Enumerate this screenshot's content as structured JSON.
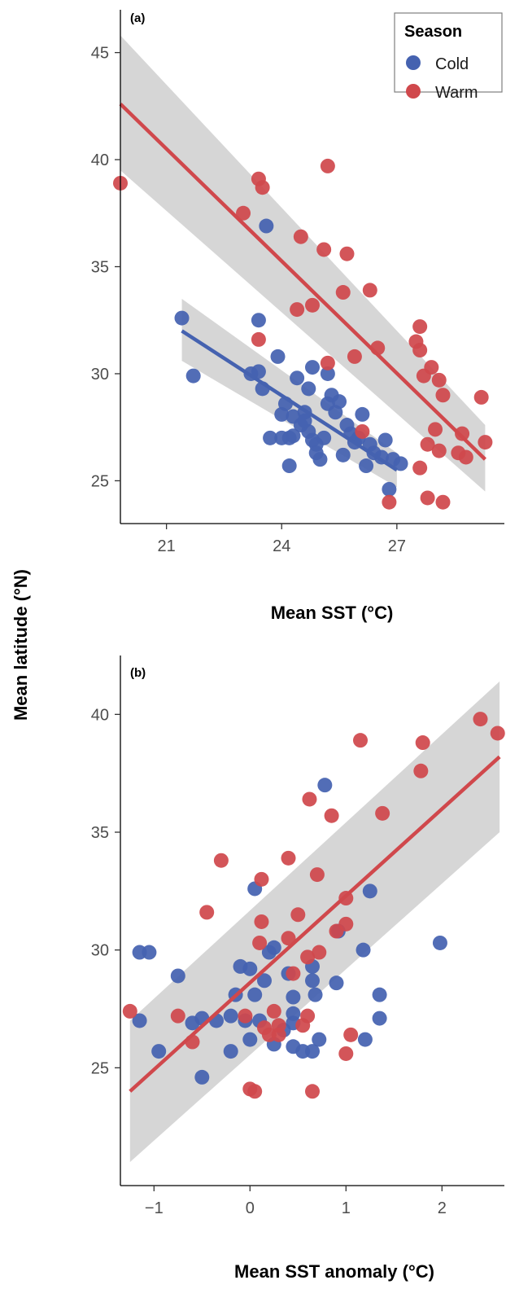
{
  "figure": {
    "shared_ylabel": "Mean latitude (°N)"
  },
  "colors": {
    "cold": "#4562b0",
    "warm": "#d0484c",
    "ribbon": "#bdbdbd"
  },
  "legend": {
    "title": "Season",
    "entries": [
      {
        "label": "Cold",
        "color": "#4562b0"
      },
      {
        "label": "Warm",
        "color": "#d0484c"
      }
    ]
  },
  "chart_data": [
    {
      "type": "scatter",
      "panel_label": "(a)",
      "xlabel": "Mean SST (°C)",
      "ylabel": "Mean latitude (°N)",
      "xlim": [
        19.8,
        29.8
      ],
      "ylim": [
        23,
        47
      ],
      "xticks": [
        21,
        24,
        27
      ],
      "yticks": [
        25,
        30,
        35,
        40,
        45
      ],
      "legend_position": "top-right",
      "grid": false,
      "series": [
        {
          "name": "Cold",
          "color": "#4562b0",
          "points": [
            [
              21.4,
              32.6
            ],
            [
              21.7,
              29.9
            ],
            [
              23.4,
              32.5
            ],
            [
              23.6,
              36.9
            ],
            [
              23.2,
              30.0
            ],
            [
              23.4,
              30.1
            ],
            [
              23.9,
              30.8
            ],
            [
              23.5,
              29.3
            ],
            [
              23.7,
              27.0
            ],
            [
              24.0,
              28.1
            ],
            [
              24.1,
              28.6
            ],
            [
              24.2,
              27.0
            ],
            [
              24.3,
              27.1
            ],
            [
              24.4,
              29.8
            ],
            [
              24.2,
              25.7
            ],
            [
              24.0,
              27.0
            ],
            [
              24.3,
              28.0
            ],
            [
              24.6,
              28.2
            ],
            [
              24.7,
              29.3
            ],
            [
              24.8,
              30.3
            ],
            [
              24.7,
              27.3
            ],
            [
              24.8,
              26.9
            ],
            [
              24.9,
              26.3
            ],
            [
              25.0,
              26.0
            ],
            [
              24.9,
              26.7
            ],
            [
              25.1,
              27.0
            ],
            [
              25.2,
              28.6
            ],
            [
              25.3,
              29.0
            ],
            [
              25.4,
              28.2
            ],
            [
              25.5,
              28.7
            ],
            [
              25.7,
              27.6
            ],
            [
              25.2,
              30.0
            ],
            [
              25.6,
              26.2
            ],
            [
              25.9,
              26.8
            ],
            [
              26.0,
              27.0
            ],
            [
              26.1,
              28.1
            ],
            [
              26.2,
              25.7
            ],
            [
              26.4,
              26.3
            ],
            [
              26.6,
              26.1
            ],
            [
              26.7,
              26.9
            ],
            [
              26.9,
              26.0
            ],
            [
              27.1,
              25.8
            ],
            [
              26.8,
              24.6
            ],
            [
              24.5,
              27.6
            ],
            [
              25.8,
              27.2
            ],
            [
              26.3,
              26.7
            ],
            [
              24.6,
              27.8
            ]
          ]
        },
        {
          "name": "Warm",
          "color": "#d0484c",
          "points": [
            [
              19.8,
              38.9
            ],
            [
              23.0,
              37.5
            ],
            [
              23.4,
              39.1
            ],
            [
              23.5,
              38.7
            ],
            [
              24.5,
              36.4
            ],
            [
              25.2,
              39.7
            ],
            [
              25.1,
              35.8
            ],
            [
              25.7,
              35.6
            ],
            [
              25.6,
              33.8
            ],
            [
              26.3,
              33.9
            ],
            [
              24.4,
              33.0
            ],
            [
              24.8,
              33.2
            ],
            [
              23.4,
              31.6
            ],
            [
              25.2,
              30.5
            ],
            [
              25.9,
              30.8
            ],
            [
              26.5,
              31.2
            ],
            [
              27.6,
              32.2
            ],
            [
              27.5,
              31.5
            ],
            [
              27.6,
              31.1
            ],
            [
              27.7,
              29.9
            ],
            [
              27.9,
              30.3
            ],
            [
              28.1,
              29.7
            ],
            [
              28.2,
              29.0
            ],
            [
              28.0,
              27.4
            ],
            [
              27.8,
              26.7
            ],
            [
              28.1,
              26.4
            ],
            [
              28.6,
              26.3
            ],
            [
              28.7,
              27.2
            ],
            [
              28.8,
              26.1
            ],
            [
              29.2,
              28.9
            ],
            [
              29.3,
              26.8
            ],
            [
              27.6,
              25.6
            ],
            [
              27.8,
              24.2
            ],
            [
              28.2,
              24.0
            ],
            [
              26.8,
              24.0
            ],
            [
              26.1,
              27.3
            ]
          ]
        }
      ],
      "fits": [
        {
          "name": "Cold",
          "color": "#4562b0",
          "x": [
            21.4,
            27.0
          ],
          "y": [
            32.0,
            25.5
          ],
          "band_lo": [
            30.6,
            24.7
          ],
          "band_hi": [
            33.5,
            26.3
          ]
        },
        {
          "name": "Warm",
          "color": "#d0484c",
          "x": [
            19.8,
            29.3
          ],
          "y": [
            42.6,
            26.0
          ],
          "band_lo": [
            39.5,
            24.5
          ],
          "band_hi": [
            45.8,
            27.6
          ]
        }
      ]
    },
    {
      "type": "scatter",
      "panel_label": "(b)",
      "xlabel": "Mean SST anomaly (°C)",
      "ylabel": "Mean latitude (°N)",
      "xlim": [
        -1.35,
        2.65
      ],
      "ylim": [
        20,
        42.5
      ],
      "xticks": [
        -1,
        0,
        1,
        2
      ],
      "xtick_labels": [
        "−1",
        "0",
        "1",
        "2"
      ],
      "yticks": [
        25,
        30,
        35,
        40
      ],
      "grid": false,
      "series": [
        {
          "name": "Cold",
          "color": "#4562b0",
          "points": [
            [
              -1.15,
              29.9
            ],
            [
              -1.05,
              29.9
            ],
            [
              -1.15,
              27.0
            ],
            [
              -0.95,
              25.7
            ],
            [
              -0.75,
              28.9
            ],
            [
              -0.6,
              26.9
            ],
            [
              -0.5,
              27.1
            ],
            [
              -0.5,
              24.6
            ],
            [
              -0.35,
              27.0
            ],
            [
              -0.2,
              27.2
            ],
            [
              -0.2,
              25.7
            ],
            [
              -0.15,
              28.1
            ],
            [
              -0.1,
              29.3
            ],
            [
              -0.05,
              27.0
            ],
            [
              0.0,
              29.2
            ],
            [
              0.0,
              26.2
            ],
            [
              0.05,
              28.1
            ],
            [
              0.05,
              32.6
            ],
            [
              0.1,
              27.0
            ],
            [
              0.15,
              28.7
            ],
            [
              0.2,
              29.9
            ],
            [
              0.25,
              30.1
            ],
            [
              0.25,
              26.0
            ],
            [
              0.35,
              26.6
            ],
            [
              0.4,
              29.0
            ],
            [
              0.45,
              28.0
            ],
            [
              0.45,
              27.3
            ],
            [
              0.45,
              26.9
            ],
            [
              0.45,
              25.9
            ],
            [
              0.55,
              25.7
            ],
            [
              0.65,
              29.3
            ],
            [
              0.65,
              28.7
            ],
            [
              0.68,
              28.1
            ],
            [
              0.72,
              26.2
            ],
            [
              0.65,
              25.7
            ],
            [
              0.78,
              37.0
            ],
            [
              0.9,
              28.6
            ],
            [
              0.92,
              30.8
            ],
            [
              1.18,
              30.0
            ],
            [
              1.2,
              26.2
            ],
            [
              1.25,
              32.5
            ],
            [
              1.35,
              28.1
            ],
            [
              1.35,
              27.1
            ],
            [
              1.98,
              30.3
            ]
          ]
        },
        {
          "name": "Warm",
          "color": "#d0484c",
          "points": [
            [
              -1.25,
              27.4
            ],
            [
              -0.75,
              27.2
            ],
            [
              -0.6,
              26.1
            ],
            [
              -0.45,
              31.6
            ],
            [
              -0.3,
              33.8
            ],
            [
              -0.05,
              27.2
            ],
            [
              0.0,
              24.1
            ],
            [
              0.05,
              24.0
            ],
            [
              0.1,
              30.3
            ],
            [
              0.12,
              33.0
            ],
            [
              0.12,
              31.2
            ],
            [
              0.15,
              26.7
            ],
            [
              0.2,
              26.4
            ],
            [
              0.25,
              27.4
            ],
            [
              0.3,
              26.8
            ],
            [
              0.3,
              26.4
            ],
            [
              0.4,
              30.5
            ],
            [
              0.4,
              33.9
            ],
            [
              0.45,
              29.0
            ],
            [
              0.5,
              31.5
            ],
            [
              0.55,
              26.8
            ],
            [
              0.6,
              27.2
            ],
            [
              0.6,
              29.7
            ],
            [
              0.62,
              36.4
            ],
            [
              0.65,
              24.0
            ],
            [
              0.7,
              33.2
            ],
            [
              0.72,
              29.9
            ],
            [
              0.85,
              35.7
            ],
            [
              0.9,
              30.8
            ],
            [
              1.0,
              32.2
            ],
            [
              1.0,
              31.1
            ],
            [
              1.0,
              25.6
            ],
            [
              1.05,
              26.4
            ],
            [
              1.15,
              38.9
            ],
            [
              1.38,
              35.8
            ],
            [
              1.78,
              37.6
            ],
            [
              1.8,
              38.8
            ],
            [
              2.4,
              39.8
            ],
            [
              2.58,
              39.2
            ]
          ]
        }
      ],
      "fits": [
        {
          "name": "Warm",
          "color": "#d0484c",
          "x": [
            -1.25,
            2.6
          ],
          "y": [
            24.0,
            38.2
          ],
          "band_lo": [
            21.0,
            35.0
          ],
          "band_hi": [
            27.0,
            41.4
          ]
        }
      ]
    }
  ]
}
